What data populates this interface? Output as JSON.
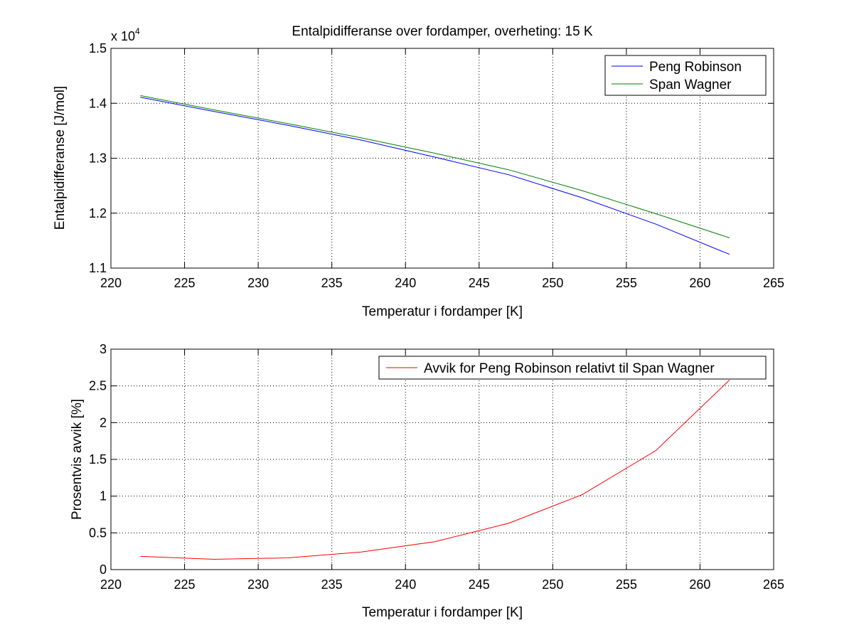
{
  "chart_data": [
    {
      "type": "line",
      "title": "Entalpidifferanse over fordamper, overheting: 15 K",
      "xlabel": "Temperatur i fordamper [K]",
      "ylabel": "Entalpidifferanse [J/mol]",
      "y_multiplier_label": "x 10",
      "y_multiplier_exponent": "4",
      "xlim": [
        220,
        265
      ],
      "ylim": [
        1.1,
        1.5
      ],
      "x_ticks": [
        "220",
        "225",
        "230",
        "235",
        "240",
        "245",
        "250",
        "255",
        "260",
        "265"
      ],
      "y_ticks": [
        "1.1",
        "1.2",
        "1.3",
        "1.4",
        "1.5"
      ],
      "grid": true,
      "legend_position": "top-right",
      "series": [
        {
          "name": "Peng Robinson",
          "color": "#0000ff",
          "x": [
            222,
            227,
            232,
            237,
            242,
            247,
            252,
            257,
            262
          ],
          "y": [
            1.411,
            1.385,
            1.36,
            1.333,
            1.302,
            1.27,
            1.228,
            1.18,
            1.125
          ]
        },
        {
          "name": "Span Wagner",
          "color": "#008000",
          "x": [
            222,
            227,
            232,
            237,
            242,
            247,
            252,
            257,
            262
          ],
          "y": [
            1.414,
            1.388,
            1.363,
            1.337,
            1.309,
            1.279,
            1.241,
            1.199,
            1.155
          ]
        }
      ]
    },
    {
      "type": "line",
      "xlabel": "Temperatur i fordamper [K]",
      "ylabel": "Prosentvis avvik [%]",
      "xlim": [
        220,
        265
      ],
      "ylim": [
        0,
        3
      ],
      "x_ticks": [
        "220",
        "225",
        "230",
        "235",
        "240",
        "245",
        "250",
        "255",
        "260",
        "265"
      ],
      "y_ticks": [
        "0",
        "0.5",
        "1",
        "1.5",
        "2",
        "2.5",
        "3"
      ],
      "grid": true,
      "legend_position": "top-right",
      "series": [
        {
          "name": "Avvik for Peng Robinson relativt til Span Wagner",
          "color": "#ff0000",
          "x": [
            222,
            227,
            232,
            237,
            242,
            247,
            252,
            257,
            262
          ],
          "y": [
            0.18,
            0.14,
            0.16,
            0.24,
            0.38,
            0.63,
            1.02,
            1.62,
            2.58
          ]
        }
      ]
    }
  ]
}
